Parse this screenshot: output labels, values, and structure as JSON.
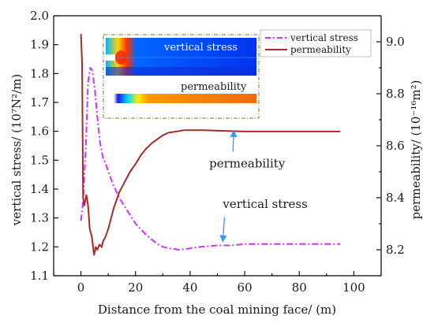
{
  "chart_data": {
    "type": "line",
    "xlabel": "Distance from the coal mining face/ (m)",
    "ylabel_left": "vertical stress/ (10⁷N²/m)",
    "ylabel_right": "permeability/ (10⁻¹⁶m²)",
    "xlim": [
      -10,
      110
    ],
    "xticks": [
      0,
      20,
      40,
      60,
      80,
      100
    ],
    "ylim_left": [
      1.1,
      2.0
    ],
    "yticks_left": [
      "1.1",
      "1.2",
      "1.3",
      "1.4",
      "1.5",
      "1.6",
      "1.7",
      "1.8",
      "1.9",
      "2.0"
    ],
    "ylim_right": [
      8.1,
      9.1
    ],
    "yticks_right": [
      "8.2",
      "8.4",
      "8.6",
      "8.8",
      "9.0"
    ],
    "legend_position": "top-right",
    "series": [
      {
        "name": "vertical stress",
        "axis": "left",
        "color": "#cc33ff",
        "style": "dash-dot",
        "x": [
          0,
          0.8,
          1.8,
          2.6,
          3.4,
          4.2,
          5.0,
          6.0,
          7.0,
          8.0,
          9.0,
          10.0,
          12.0,
          14.0,
          16.0,
          18.0,
          20.0,
          22.0,
          24.0,
          26.0,
          28.0,
          30.0,
          32.0,
          34.0,
          36.0,
          38.0,
          40.0,
          44.0,
          50.0,
          55.0,
          60.0,
          70.0,
          80.0,
          90.0,
          95.0
        ],
        "y": [
          1.29,
          1.36,
          1.55,
          1.77,
          1.82,
          1.81,
          1.75,
          1.65,
          1.56,
          1.51,
          1.49,
          1.46,
          1.41,
          1.37,
          1.34,
          1.31,
          1.28,
          1.26,
          1.24,
          1.225,
          1.21,
          1.2,
          1.195,
          1.193,
          1.19,
          1.192,
          1.195,
          1.2,
          1.205,
          1.205,
          1.21,
          1.21,
          1.21,
          1.21,
          1.21
        ]
      },
      {
        "name": "permeability",
        "axis": "right",
        "color": "#a52a2a",
        "style": "solid",
        "x": [
          0,
          0.4,
          0.8,
          1.2,
          1.6,
          2.0,
          2.6,
          3.2,
          4.0,
          4.8,
          5.4,
          6.0,
          6.8,
          7.6,
          8.0,
          9.0,
          10.0,
          12.0,
          14.0,
          16.0,
          18.0,
          20.0,
          22.0,
          24.0,
          26.0,
          28.0,
          30.0,
          32.0,
          35.0,
          38.0,
          40.0,
          45.0,
          50.0,
          60.0,
          70.0,
          80.0,
          90.0,
          95.0
        ],
        "y": [
          9.03,
          8.92,
          8.4,
          8.37,
          8.39,
          8.41,
          8.37,
          8.28,
          8.25,
          8.18,
          8.21,
          8.2,
          8.22,
          8.21,
          8.23,
          8.25,
          8.28,
          8.36,
          8.42,
          8.46,
          8.5,
          8.53,
          8.565,
          8.59,
          8.61,
          8.625,
          8.64,
          8.65,
          8.655,
          8.66,
          8.66,
          8.66,
          8.658,
          8.655,
          8.655,
          8.655,
          8.655,
          8.655
        ]
      }
    ],
    "annotations": [
      {
        "text": "permeability",
        "x": 47,
        "y_left": 1.475,
        "arrow_to_x": 56,
        "arrow_to_y_left": 1.6
      },
      {
        "text": "vertical stress",
        "x": 52,
        "y_left": 1.335,
        "arrow_to_x": 52,
        "arrow_to_y_left": 1.22
      }
    ],
    "inset": {
      "labels": [
        "vertical stress",
        "permeability"
      ]
    }
  }
}
